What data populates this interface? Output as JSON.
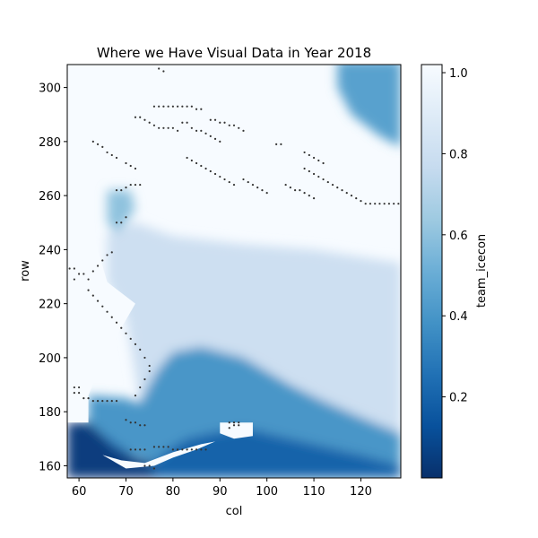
{
  "chart_data": {
    "type": "heatmap",
    "title": "Where we Have Visual Data in Year 2018",
    "xlabel": "col",
    "ylabel": "row",
    "xlim": [
      57.5,
      128.5
    ],
    "ylim": [
      155.5,
      308.5
    ],
    "xticks": [
      60,
      70,
      80,
      90,
      100,
      110,
      120
    ],
    "yticks": [
      160,
      180,
      200,
      220,
      240,
      260,
      280,
      300
    ],
    "colormap": "Blues_r",
    "colorbar": {
      "label": "team_icecon",
      "range": [
        0.0,
        1.02
      ],
      "ticks": [
        0.2,
        0.4,
        0.6,
        0.8,
        1.0
      ],
      "tick_labels": [
        "0.2",
        "0.4",
        "0.6",
        "0.8",
        "1.0"
      ]
    },
    "grid": false,
    "ice_regions": [
      {
        "desc": "open water south-west",
        "value": 0.05,
        "polygon": [
          [
            57.5,
            155.5
          ],
          [
            76,
            155.5
          ],
          [
            76,
            161
          ],
          [
            72,
            163
          ],
          [
            67,
            167
          ],
          [
            64,
            173
          ],
          [
            62,
            176
          ],
          [
            57.5,
            176
          ]
        ]
      },
      {
        "desc": "dark band south-west",
        "value": 0.2,
        "polygon": [
          [
            57.5,
            176
          ],
          [
            62,
            176
          ],
          [
            64,
            173
          ],
          [
            67,
            167
          ],
          [
            72,
            163
          ],
          [
            76,
            161
          ],
          [
            79,
            166
          ],
          [
            83,
            170
          ],
          [
            88,
            172
          ],
          [
            95,
            174
          ],
          [
            100,
            172
          ],
          [
            105,
            170
          ],
          [
            110,
            168
          ],
          [
            115,
            166
          ],
          [
            120,
            164
          ],
          [
            128.5,
            160
          ],
          [
            128.5,
            155.5
          ],
          [
            76,
            155.5
          ],
          [
            76,
            161
          ],
          [
            72,
            163
          ],
          [
            64,
            173
          ]
        ]
      },
      {
        "desc": "mid-blue band",
        "value": 0.4,
        "polygon": [
          [
            62,
            186
          ],
          [
            70,
            185
          ],
          [
            73,
            183
          ],
          [
            75,
            190
          ],
          [
            77,
            196
          ],
          [
            80,
            202
          ],
          [
            86,
            204
          ],
          [
            95,
            200
          ],
          [
            105,
            190
          ],
          [
            112,
            184
          ],
          [
            120,
            178
          ],
          [
            128.5,
            172
          ],
          [
            128.5,
            160
          ],
          [
            120,
            164
          ],
          [
            110,
            168
          ],
          [
            100,
            172
          ],
          [
            88,
            172
          ],
          [
            79,
            166
          ],
          [
            76,
            161
          ],
          [
            67,
            167
          ],
          [
            64,
            173
          ],
          [
            62,
            176
          ]
        ]
      },
      {
        "desc": "north-east coast",
        "value": 0.45,
        "polygon": [
          [
            115,
            310
          ],
          [
            128.5,
            310
          ],
          [
            128.5,
            278
          ],
          [
            124,
            282
          ],
          [
            118,
            290
          ],
          [
            115,
            300
          ]
        ]
      },
      {
        "desc": "north-west inlet",
        "value": 0.6,
        "polygon": [
          [
            66,
            262
          ],
          [
            71,
            262
          ],
          [
            72,
            255
          ],
          [
            70,
            250
          ],
          [
            68,
            246
          ],
          [
            66,
            250
          ]
        ]
      },
      {
        "desc": "light interior",
        "value": 0.8,
        "polygon": [
          [
            66,
            246
          ],
          [
            72,
            250
          ],
          [
            80,
            245
          ],
          [
            95,
            242
          ],
          [
            110,
            240
          ],
          [
            128.5,
            235
          ],
          [
            128.5,
            172
          ],
          [
            112,
            184
          ],
          [
            95,
            200
          ],
          [
            80,
            202
          ],
          [
            77,
            196
          ],
          [
            73,
            183
          ],
          [
            70,
            215
          ],
          [
            66,
            228
          ]
        ]
      }
    ],
    "land_regions": [
      {
        "desc": "western land",
        "polygon": [
          [
            57.5,
            176
          ],
          [
            62,
            176
          ],
          [
            62,
            186
          ],
          [
            64,
            195
          ],
          [
            68,
            208
          ],
          [
            72,
            220
          ],
          [
            66,
            228
          ],
          [
            64,
            240
          ],
          [
            62,
            260
          ],
          [
            65,
            270
          ],
          [
            62,
            290
          ],
          [
            57.5,
            290
          ]
        ]
      },
      {
        "desc": "south-central land",
        "polygon": [
          [
            65,
            164
          ],
          [
            69,
            162
          ],
          [
            74,
            161
          ],
          [
            80,
            165
          ],
          [
            86,
            168
          ],
          [
            89,
            169
          ],
          [
            85,
            166
          ],
          [
            80,
            163
          ],
          [
            76,
            160
          ],
          [
            70,
            159
          ]
        ]
      },
      {
        "desc": "central coast land",
        "polygon": [
          [
            90,
            176
          ],
          [
            97,
            176
          ],
          [
            97,
            171
          ],
          [
            93,
            170
          ],
          [
            90,
            172
          ]
        ]
      },
      {
        "desc": "north islands",
        "polygon": [
          [
            75,
            300
          ],
          [
            84,
            300
          ],
          [
            88,
            292
          ],
          [
            94,
            282
          ],
          [
            100,
            274
          ],
          [
            104,
            268
          ],
          [
            106,
            262
          ],
          [
            100,
            258
          ],
          [
            94,
            260
          ],
          [
            86,
            262
          ],
          [
            78,
            264
          ],
          [
            72,
            268
          ],
          [
            70,
            276
          ],
          [
            72,
            292
          ]
        ]
      }
    ],
    "observation_points": [
      [
        59,
        189
      ],
      [
        60,
        189
      ],
      [
        59,
        187
      ],
      [
        60,
        187
      ],
      [
        61,
        185
      ],
      [
        62,
        185
      ],
      [
        63,
        184
      ],
      [
        64,
        184
      ],
      [
        65,
        184
      ],
      [
        66,
        184
      ],
      [
        67,
        184
      ],
      [
        68,
        184
      ],
      [
        58,
        233
      ],
      [
        59,
        233
      ],
      [
        60,
        231
      ],
      [
        61,
        231
      ],
      [
        59,
        229
      ],
      [
        62,
        229
      ],
      [
        63,
        232
      ],
      [
        64,
        234
      ],
      [
        65,
        236
      ],
      [
        66,
        238
      ],
      [
        67,
        239
      ],
      [
        62,
        225
      ],
      [
        63,
        223
      ],
      [
        64,
        221
      ],
      [
        65,
        219
      ],
      [
        66,
        217
      ],
      [
        67,
        215
      ],
      [
        68,
        213
      ],
      [
        69,
        211
      ],
      [
        70,
        209
      ],
      [
        71,
        207
      ],
      [
        72,
        205
      ],
      [
        73,
        203
      ],
      [
        74,
        200
      ],
      [
        75,
        197
      ],
      [
        75,
        195
      ],
      [
        74,
        192
      ],
      [
        73,
        189
      ],
      [
        72,
        186
      ],
      [
        68,
        262
      ],
      [
        69,
        262
      ],
      [
        70,
        263
      ],
      [
        71,
        264
      ],
      [
        72,
        264
      ],
      [
        73,
        264
      ],
      [
        63,
        280
      ],
      [
        64,
        279
      ],
      [
        65,
        278
      ],
      [
        66,
        276
      ],
      [
        67,
        275
      ],
      [
        68,
        274
      ],
      [
        70,
        272
      ],
      [
        71,
        271
      ],
      [
        72,
        270
      ],
      [
        72,
        289
      ],
      [
        73,
        289
      ],
      [
        74,
        288
      ],
      [
        75,
        287
      ],
      [
        76,
        286
      ],
      [
        77,
        285
      ],
      [
        78,
        285
      ],
      [
        79,
        285
      ],
      [
        80,
        285
      ],
      [
        81,
        284
      ],
      [
        76,
        293
      ],
      [
        77,
        293
      ],
      [
        78,
        293
      ],
      [
        79,
        293
      ],
      [
        80,
        293
      ],
      [
        81,
        293
      ],
      [
        82,
        293
      ],
      [
        83,
        293
      ],
      [
        84,
        293
      ],
      [
        85,
        292
      ],
      [
        86,
        292
      ],
      [
        77,
        307
      ],
      [
        78,
        306
      ],
      [
        82,
        287
      ],
      [
        83,
        287
      ],
      [
        84,
        285
      ],
      [
        85,
        284
      ],
      [
        86,
        284
      ],
      [
        87,
        283
      ],
      [
        88,
        282
      ],
      [
        89,
        281
      ],
      [
        90,
        280
      ],
      [
        88,
        288
      ],
      [
        89,
        288
      ],
      [
        90,
        287
      ],
      [
        91,
        287
      ],
      [
        92,
        286
      ],
      [
        93,
        286
      ],
      [
        94,
        285
      ],
      [
        95,
        284
      ],
      [
        83,
        274
      ],
      [
        84,
        273
      ],
      [
        85,
        272
      ],
      [
        86,
        271
      ],
      [
        87,
        270
      ],
      [
        88,
        269
      ],
      [
        89,
        268
      ],
      [
        90,
        267
      ],
      [
        91,
        266
      ],
      [
        92,
        265
      ],
      [
        93,
        264
      ],
      [
        95,
        266
      ],
      [
        96,
        265
      ],
      [
        97,
        264
      ],
      [
        98,
        263
      ],
      [
        99,
        262
      ],
      [
        100,
        261
      ],
      [
        104,
        264
      ],
      [
        105,
        263
      ],
      [
        106,
        262
      ],
      [
        107,
        262
      ],
      [
        108,
        261
      ],
      [
        109,
        260
      ],
      [
        110,
        259
      ],
      [
        108,
        270
      ],
      [
        109,
        269
      ],
      [
        110,
        268
      ],
      [
        111,
        267
      ],
      [
        112,
        266
      ],
      [
        113,
        265
      ],
      [
        114,
        264
      ],
      [
        115,
        263
      ],
      [
        116,
        262
      ],
      [
        117,
        261
      ],
      [
        118,
        260
      ],
      [
        119,
        259
      ],
      [
        120,
        258
      ],
      [
        121,
        257
      ],
      [
        122,
        257
      ],
      [
        123,
        257
      ],
      [
        124,
        257
      ],
      [
        125,
        257
      ],
      [
        126,
        257
      ],
      [
        127,
        257
      ],
      [
        128,
        257
      ],
      [
        108,
        276
      ],
      [
        109,
        275
      ],
      [
        110,
        274
      ],
      [
        111,
        273
      ],
      [
        112,
        272
      ],
      [
        102,
        279
      ],
      [
        103,
        279
      ],
      [
        76,
        167
      ],
      [
        77,
        167
      ],
      [
        78,
        167
      ],
      [
        79,
        167
      ],
      [
        80,
        166
      ],
      [
        81,
        166
      ],
      [
        82,
        166
      ],
      [
        83,
        166
      ],
      [
        84,
        166
      ],
      [
        85,
        166
      ],
      [
        86,
        166
      ],
      [
        87,
        166
      ],
      [
        71,
        166
      ],
      [
        72,
        166
      ],
      [
        73,
        166
      ],
      [
        74,
        166
      ],
      [
        70,
        177
      ],
      [
        71,
        176
      ],
      [
        72,
        176
      ],
      [
        73,
        175
      ],
      [
        74,
        175
      ],
      [
        76,
        159
      ],
      [
        75,
        160
      ],
      [
        74,
        160
      ],
      [
        92,
        174
      ],
      [
        93,
        175
      ],
      [
        94,
        175
      ],
      [
        92,
        176
      ],
      [
        93,
        176
      ],
      [
        94,
        176
      ],
      [
        68,
        250
      ],
      [
        69,
        250
      ],
      [
        70,
        252
      ]
    ]
  }
}
